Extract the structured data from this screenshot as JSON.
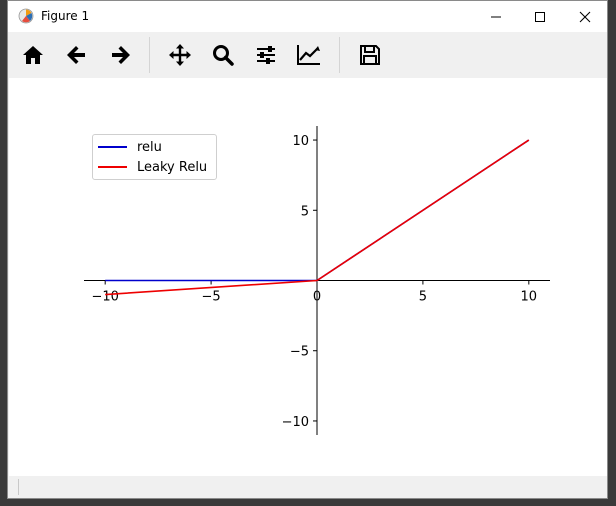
{
  "window": {
    "title": "Figure 1",
    "controls": [
      "minimize-icon",
      "maximize-icon",
      "close-icon"
    ]
  },
  "toolbar": {
    "buttons": [
      {
        "name": "home-button",
        "icon": "home-icon"
      },
      {
        "name": "back-button",
        "icon": "arrow-left-icon"
      },
      {
        "name": "forward-button",
        "icon": "arrow-right-icon"
      },
      {
        "name": "pan-button",
        "icon": "move-icon"
      },
      {
        "name": "zoom-button",
        "icon": "zoom-icon"
      },
      {
        "name": "configure-subplots-button",
        "icon": "sliders-icon"
      },
      {
        "name": "edit-axis-button",
        "icon": "line-chart-icon"
      },
      {
        "name": "save-button",
        "icon": "save-icon"
      }
    ]
  },
  "chart_data": {
    "type": "line",
    "xlim": [
      -11,
      11
    ],
    "ylim": [
      -11,
      11
    ],
    "xticks": [
      -10,
      -5,
      0,
      5,
      10
    ],
    "yticks": [
      -10,
      -5,
      5,
      10
    ],
    "legend_position": "top-left",
    "grid": false,
    "spines": "centered",
    "series": [
      {
        "name": "relu",
        "color": "#0000cc",
        "x": [
          -10,
          0,
          10
        ],
        "y": [
          0,
          0,
          10
        ]
      },
      {
        "name": "Leaky Relu",
        "color": "#ee0000",
        "x": [
          -10,
          0,
          10
        ],
        "y": [
          -1,
          0,
          10
        ]
      }
    ]
  }
}
